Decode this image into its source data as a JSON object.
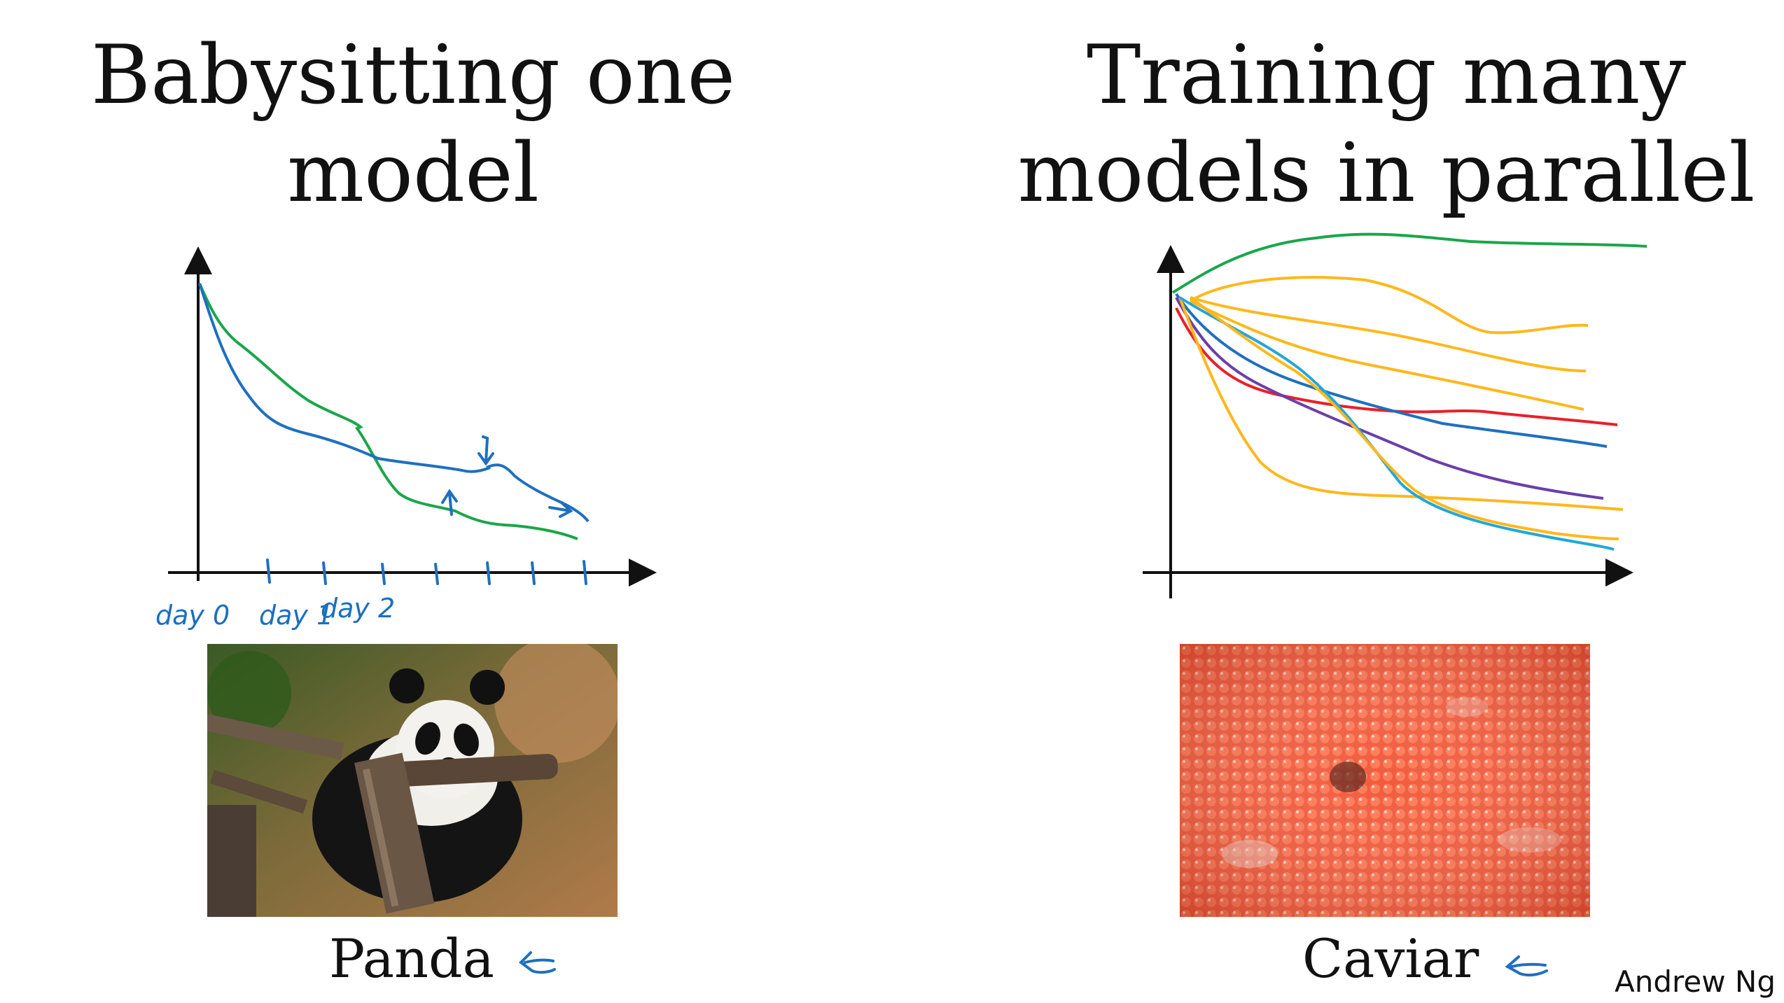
{
  "slide": {
    "left_title_line1": "Babysitting one",
    "left_title_line2": "model",
    "right_title_line1": "Training many",
    "right_title_line2": "models in parallel",
    "left_caption": "Panda",
    "right_caption": "Caviar",
    "author": "Andrew Ng"
  },
  "annotations": {
    "day_labels": [
      "day 0",
      "day 1",
      "day 2"
    ]
  },
  "colors": {
    "blue": "#1f6fbf",
    "green": "#1aa64a",
    "yellow": "#ffb81c",
    "red": "#e8202a",
    "purple": "#6a3fa8",
    "cyan": "#22a7d8"
  },
  "images": {
    "left": "panda-photo",
    "right": "caviar-photo"
  }
}
